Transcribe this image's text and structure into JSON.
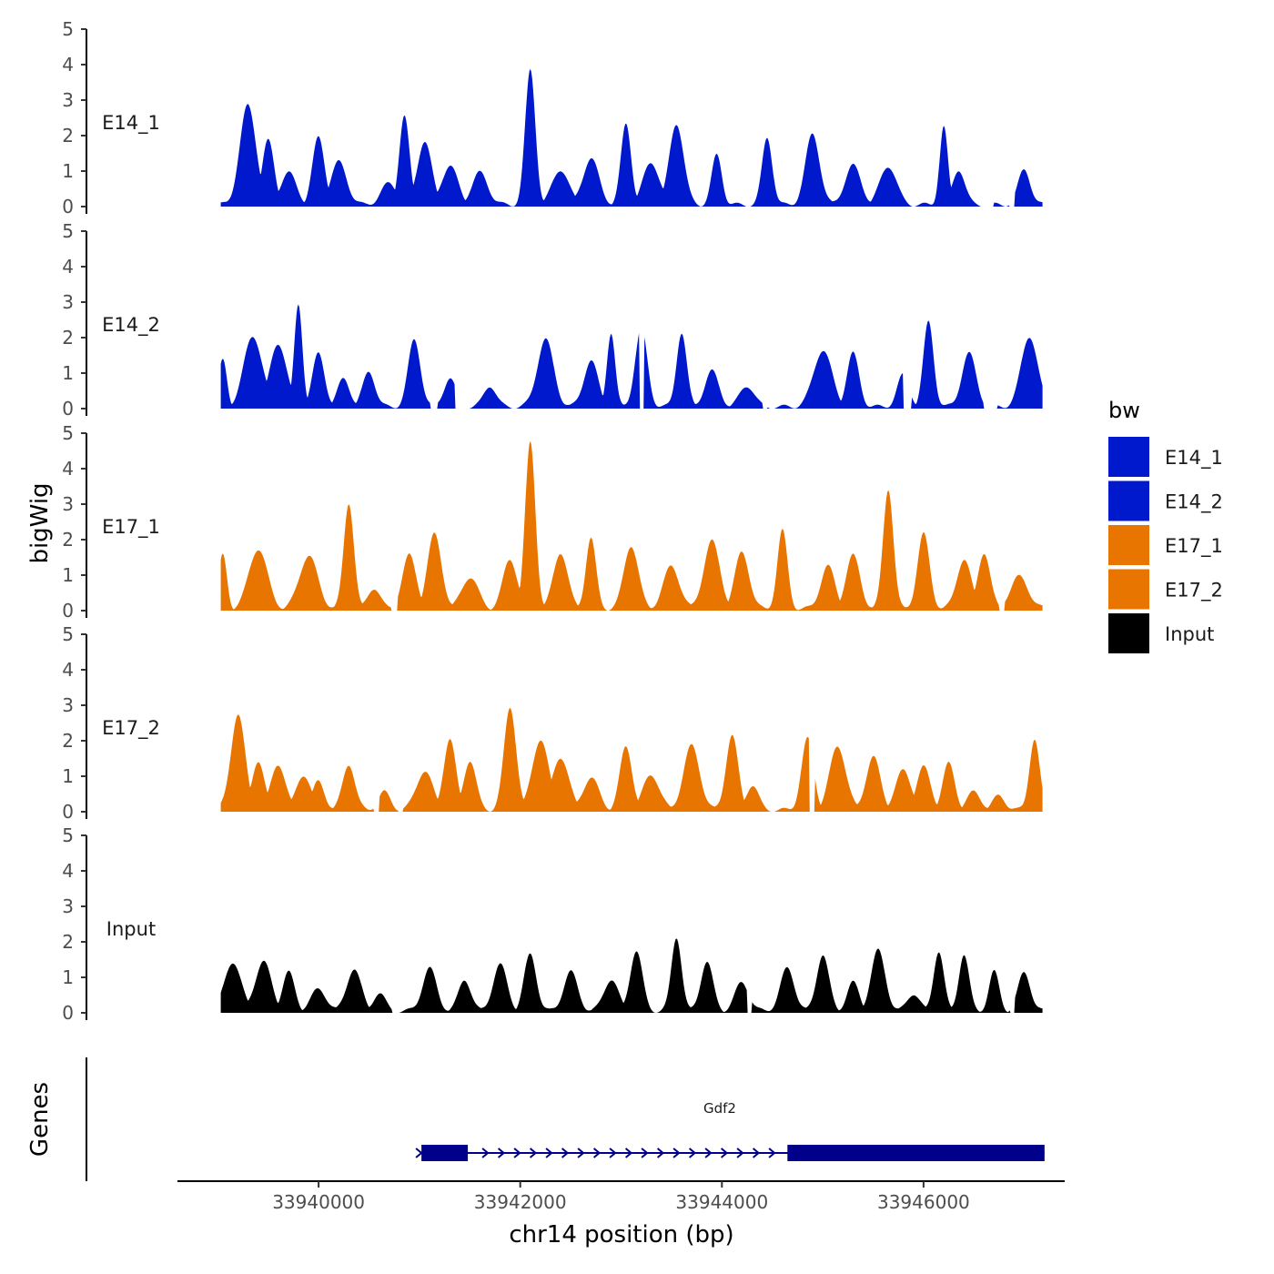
{
  "chart_data": {
    "type": "area",
    "ylabel": "bigWig",
    "xlabel": "chr14 position (bp)",
    "xlim": [
      33938600,
      33947400
    ],
    "ylim": [
      0,
      5
    ],
    "y_ticks": [
      "0",
      "1",
      "2",
      "3",
      "4",
      "5"
    ],
    "x_ticks": [
      {
        "value": 33940000,
        "label": "33940000"
      },
      {
        "value": 33942000,
        "label": "33942000"
      },
      {
        "value": 33944000,
        "label": "33944000"
      },
      {
        "value": 33946000,
        "label": "33946000"
      }
    ],
    "region": {
      "start": 33939030,
      "end": 33947180
    },
    "legend": {
      "title": "bw",
      "entries": [
        {
          "label": "E14_1",
          "color": "#0019cc"
        },
        {
          "label": "E14_2",
          "color": "#0019cc"
        },
        {
          "label": "E17_1",
          "color": "#e87500"
        },
        {
          "label": "E17_2",
          "color": "#e87500"
        },
        {
          "label": "Input",
          "color": "#000000"
        }
      ]
    },
    "series": [
      {
        "name": "E14_1",
        "label": "E14_1",
        "color": "#0019cc",
        "baseline": 0,
        "peaks": [
          [
            33939300,
            2.8,
            80
          ],
          [
            33939500,
            1.8,
            60
          ],
          [
            33939700,
            0.9,
            80
          ],
          [
            33940000,
            1.9,
            60
          ],
          [
            33940200,
            1.2,
            80
          ],
          [
            33940700,
            0.6,
            80
          ],
          [
            33940850,
            2.5,
            50
          ],
          [
            33941050,
            1.8,
            70
          ],
          [
            33941300,
            1.1,
            80
          ],
          [
            33941600,
            0.9,
            80
          ],
          [
            33942100,
            3.8,
            50
          ],
          [
            33942400,
            1.0,
            80
          ],
          [
            33942700,
            1.3,
            80
          ],
          [
            33943050,
            2.3,
            50
          ],
          [
            33943300,
            1.2,
            80
          ],
          [
            33943550,
            2.3,
            70
          ],
          [
            33943950,
            1.4,
            50
          ],
          [
            33944450,
            1.9,
            50
          ],
          [
            33944900,
            2.0,
            70
          ],
          [
            33945300,
            1.1,
            80
          ],
          [
            33945650,
            1.1,
            80
          ],
          [
            33946200,
            2.2,
            40
          ],
          [
            33946350,
            1.0,
            60
          ],
          [
            33947000,
            1.0,
            60
          ]
        ],
        "gaps": [
          [
            33946600,
            33946700
          ],
          [
            33946850,
            33946900
          ]
        ]
      },
      {
        "name": "E14_2",
        "label": "E14_2",
        "color": "#0019cc",
        "baseline": 0,
        "peaks": [
          [
            33939050,
            1.3,
            40
          ],
          [
            33939350,
            2.0,
            90
          ],
          [
            33939600,
            1.8,
            80
          ],
          [
            33939800,
            2.9,
            40
          ],
          [
            33940000,
            1.5,
            60
          ],
          [
            33940250,
            0.8,
            60
          ],
          [
            33940500,
            1.0,
            60
          ],
          [
            33940950,
            1.9,
            60
          ],
          [
            33941300,
            0.8,
            60
          ],
          [
            33941700,
            0.6,
            60
          ],
          [
            33942250,
            1.9,
            80
          ],
          [
            33942700,
            1.3,
            70
          ],
          [
            33942900,
            2.1,
            40
          ],
          [
            33943200,
            2.2,
            60
          ],
          [
            33943600,
            2.1,
            50
          ],
          [
            33943900,
            1.0,
            70
          ],
          [
            33944250,
            0.6,
            70
          ],
          [
            33945000,
            1.6,
            90
          ],
          [
            33945300,
            1.5,
            60
          ],
          [
            33945800,
            0.9,
            60
          ],
          [
            33946050,
            2.4,
            50
          ],
          [
            33946450,
            1.5,
            70
          ],
          [
            33947050,
            2.0,
            80
          ]
        ],
        "gaps": [
          [
            33941110,
            33941180
          ],
          [
            33941350,
            33941500
          ],
          [
            33943180,
            33943230
          ],
          [
            33944400,
            33944450
          ],
          [
            33945800,
            33945880
          ],
          [
            33946600,
            33946730
          ]
        ]
      },
      {
        "name": "E17_1",
        "label": "E17_1",
        "color": "#e87500",
        "baseline": 0,
        "peaks": [
          [
            33939050,
            1.5,
            40
          ],
          [
            33939400,
            1.7,
            90
          ],
          [
            33939900,
            1.5,
            90
          ],
          [
            33940300,
            3.0,
            50
          ],
          [
            33940550,
            0.6,
            60
          ],
          [
            33940900,
            1.5,
            70
          ],
          [
            33941150,
            2.1,
            70
          ],
          [
            33941500,
            0.9,
            80
          ],
          [
            33941900,
            1.4,
            70
          ],
          [
            33942100,
            4.7,
            50
          ],
          [
            33942400,
            1.6,
            70
          ],
          [
            33942700,
            2.0,
            50
          ],
          [
            33943100,
            1.8,
            70
          ],
          [
            33943500,
            1.2,
            80
          ],
          [
            33943900,
            1.9,
            80
          ],
          [
            33944200,
            1.6,
            70
          ],
          [
            33944600,
            2.2,
            50
          ],
          [
            33945050,
            1.2,
            70
          ],
          [
            33945300,
            1.5,
            70
          ],
          [
            33945650,
            3.4,
            50
          ],
          [
            33946000,
            2.1,
            60
          ],
          [
            33946400,
            1.4,
            70
          ],
          [
            33946600,
            1.6,
            60
          ],
          [
            33946950,
            0.9,
            90
          ]
        ],
        "gaps": [
          [
            33940720,
            33940780
          ],
          [
            33946750,
            33946800
          ]
        ]
      },
      {
        "name": "E17_2",
        "label": "E17_2",
        "color": "#e87500",
        "baseline": 0,
        "peaks": [
          [
            33939200,
            2.7,
            70
          ],
          [
            33939400,
            1.4,
            60
          ],
          [
            33939600,
            1.3,
            70
          ],
          [
            33939850,
            1.0,
            70
          ],
          [
            33940000,
            0.8,
            60
          ],
          [
            33940300,
            1.3,
            60
          ],
          [
            33940650,
            0.5,
            60
          ],
          [
            33941050,
            1.1,
            80
          ],
          [
            33941300,
            2.0,
            60
          ],
          [
            33941500,
            1.4,
            60
          ],
          [
            33941900,
            2.9,
            60
          ],
          [
            33942200,
            2.0,
            80
          ],
          [
            33942400,
            1.5,
            80
          ],
          [
            33942700,
            0.9,
            80
          ],
          [
            33943050,
            1.8,
            60
          ],
          [
            33943300,
            1.0,
            80
          ],
          [
            33943700,
            1.8,
            80
          ],
          [
            33944100,
            2.1,
            60
          ],
          [
            33944300,
            0.7,
            60
          ],
          [
            33944850,
            2.0,
            60
          ],
          [
            33945150,
            1.8,
            80
          ],
          [
            33945500,
            1.5,
            70
          ],
          [
            33945800,
            1.1,
            80
          ],
          [
            33946000,
            1.2,
            70
          ],
          [
            33946250,
            1.3,
            60
          ],
          [
            33946500,
            0.5,
            70
          ],
          [
            33946750,
            0.4,
            60
          ],
          [
            33947100,
            2.0,
            50
          ]
        ],
        "gaps": [
          [
            33940550,
            33940600
          ],
          [
            33940790,
            33940840
          ],
          [
            33944870,
            33944920
          ]
        ]
      },
      {
        "name": "Input",
        "label": "Input",
        "color": "#000000",
        "baseline": 0,
        "peaks": [
          [
            33939150,
            1.4,
            80
          ],
          [
            33939450,
            1.4,
            80
          ],
          [
            33939700,
            1.1,
            60
          ],
          [
            33940000,
            0.6,
            80
          ],
          [
            33940350,
            1.2,
            70
          ],
          [
            33940600,
            0.5,
            60
          ],
          [
            33941100,
            1.2,
            70
          ],
          [
            33941450,
            0.9,
            60
          ],
          [
            33941800,
            1.3,
            70
          ],
          [
            33942100,
            1.6,
            60
          ],
          [
            33942500,
            1.1,
            70
          ],
          [
            33942900,
            0.9,
            70
          ],
          [
            33943150,
            1.7,
            60
          ],
          [
            33943550,
            2.1,
            50
          ],
          [
            33943850,
            1.4,
            60
          ],
          [
            33944200,
            0.8,
            70
          ],
          [
            33944650,
            1.2,
            70
          ],
          [
            33945000,
            1.6,
            60
          ],
          [
            33945300,
            0.8,
            60
          ],
          [
            33945550,
            1.7,
            70
          ],
          [
            33945900,
            0.5,
            60
          ],
          [
            33946150,
            1.7,
            50
          ],
          [
            33946400,
            1.6,
            50
          ],
          [
            33946700,
            1.1,
            50
          ],
          [
            33947000,
            1.1,
            60
          ]
        ],
        "gaps": [
          [
            33940730,
            33940800
          ],
          [
            33944250,
            33944300
          ],
          [
            33946860,
            33946900
          ]
        ]
      }
    ],
    "genes_track": {
      "ylabel": "Genes",
      "genes": [
        {
          "name": "Gdf2",
          "start": 33941020,
          "end": 33947200,
          "strand": "+",
          "color": "#00008b",
          "exons": [
            [
              33941020,
              33941480
            ],
            [
              33944650,
              33947200
            ]
          ]
        }
      ]
    }
  }
}
